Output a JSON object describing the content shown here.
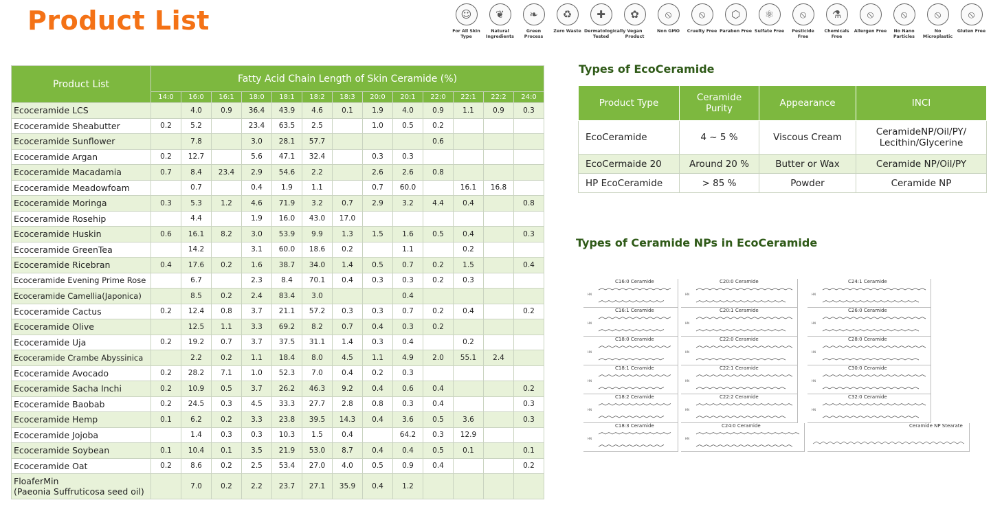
{
  "title": "Product List",
  "icons": [
    {
      "label": "For All Skin Type",
      "icon": "face-icon",
      "glyph": "☺"
    },
    {
      "label": "Natural Ingredients",
      "icon": "leaves-icon",
      "glyph": "❦"
    },
    {
      "label": "Green Process",
      "icon": "leaf-icon",
      "glyph": "❧"
    },
    {
      "label": "Zero Waste",
      "icon": "recycle-icon",
      "glyph": "♻"
    },
    {
      "label": "Dermatologically Tested",
      "icon": "droplet-icon",
      "glyph": "✚"
    },
    {
      "label": "Vegan Product",
      "icon": "vegan-leaf-icon",
      "glyph": "✿"
    },
    {
      "label": "Non GMO",
      "icon": "dna-icon",
      "glyph": "⦸"
    },
    {
      "label": "Cruelty Free",
      "icon": "rabbit-icon",
      "glyph": "⦸"
    },
    {
      "label": "Paraben Free",
      "icon": "molecule-icon",
      "glyph": "⬡"
    },
    {
      "label": "Sulfate Free",
      "icon": "atom-icon",
      "glyph": "⚛"
    },
    {
      "label": "Pesticide Free",
      "icon": "spray-bottle-icon",
      "glyph": "⦸"
    },
    {
      "label": "Chemicals Free",
      "icon": "flask-icon",
      "glyph": "⚗"
    },
    {
      "label": "Allergen Free",
      "icon": "hand-icon",
      "glyph": "⦸"
    },
    {
      "label": "No Nano Particles",
      "icon": "nano-particles-icon",
      "glyph": "⦸"
    },
    {
      "label": "No Microplastic",
      "icon": "microplastic-icon",
      "glyph": "⦸"
    },
    {
      "label": "Gluten Free",
      "icon": "wheat-icon",
      "glyph": "⦸"
    }
  ],
  "product_table": {
    "col_header": "Product List",
    "group_header": "Fatty Acid Chain Length of Skin Ceramide (%)",
    "chain_lengths": [
      "14:0",
      "16:0",
      "16:1",
      "18:0",
      "18:1",
      "18:2",
      "18:3",
      "20:0",
      "20:1",
      "22:0",
      "22:1",
      "22:2",
      "24:0"
    ],
    "rows": [
      {
        "name": "Ecoceramide LCS",
        "values": [
          "",
          "4.0",
          "0.9",
          "36.4",
          "43.9",
          "4.6",
          "0.1",
          "1.9",
          "4.0",
          "0.9",
          "1.1",
          "0.9",
          "0.3"
        ]
      },
      {
        "name": "Ecoceramide Sheabutter",
        "values": [
          "0.2",
          "5.2",
          "",
          "23.4",
          "63.5",
          "2.5",
          "",
          "1.0",
          "0.5",
          "0.2",
          "",
          "",
          ""
        ]
      },
      {
        "name": "Ecoceramide Sunflower",
        "values": [
          "",
          "7.8",
          "",
          "3.0",
          "28.1",
          "57.7",
          "",
          "",
          "",
          "0.6",
          "",
          "",
          ""
        ]
      },
      {
        "name": "Ecoceramide Argan",
        "values": [
          "0.2",
          "12.7",
          "",
          "5.6",
          "47.1",
          "32.4",
          "",
          "0.3",
          "0.3",
          "",
          "",
          "",
          ""
        ]
      },
      {
        "name": "Ecoceramide Macadamia",
        "values": [
          "0.7",
          "8.4",
          "23.4",
          "2.9",
          "54.6",
          "2.2",
          "",
          "2.6",
          "2.6",
          "0.8",
          "",
          "",
          ""
        ]
      },
      {
        "name": "Ecoceramide Meadowfoam",
        "values": [
          "",
          "0.7",
          "",
          "0.4",
          "1.9",
          "1.1",
          "",
          "0.7",
          "60.0",
          "",
          "16.1",
          "16.8",
          ""
        ]
      },
      {
        "name": "Ecoceramide Moringa",
        "values": [
          "0.3",
          "5.3",
          "1.2",
          "4.6",
          "71.9",
          "3.2",
          "0.7",
          "2.9",
          "3.2",
          "4.4",
          "0.4",
          "",
          "0.8"
        ]
      },
      {
        "name": "Ecoceramide Rosehip",
        "values": [
          "",
          "4.4",
          "",
          "1.9",
          "16.0",
          "43.0",
          "17.0",
          "",
          "",
          "",
          "",
          "",
          ""
        ]
      },
      {
        "name": "Ecoceramide Huskin",
        "values": [
          "0.6",
          "16.1",
          "8.2",
          "3.0",
          "53.9",
          "9.9",
          "1.3",
          "1.5",
          "1.6",
          "0.5",
          "0.4",
          "",
          "0.3"
        ]
      },
      {
        "name": "Ecoceramide GreenTea",
        "values": [
          "",
          "14.2",
          "",
          "3.1",
          "60.0",
          "18.6",
          "0.2",
          "",
          "1.1",
          "",
          "0.2",
          "",
          ""
        ]
      },
      {
        "name": "Ecoceramide Ricebran",
        "values": [
          "0.4",
          "17.6",
          "0.2",
          "1.6",
          "38.7",
          "34.0",
          "1.4",
          "0.5",
          "0.7",
          "0.2",
          "1.5",
          "",
          "0.4"
        ]
      },
      {
        "name": "Ecoceramide Evening Prime Rose",
        "values": [
          "",
          "6.7",
          "",
          "2.3",
          "8.4",
          "70.1",
          "0.4",
          "0.3",
          "0.3",
          "0.2",
          "0.3",
          "",
          ""
        ]
      },
      {
        "name": "Ecoceramide Camellia(Japonica)",
        "values": [
          "",
          "8.5",
          "0.2",
          "2.4",
          "83.4",
          "3.0",
          "",
          "",
          "0.4",
          "",
          "",
          "",
          ""
        ]
      },
      {
        "name": "Ecoceramide Cactus",
        "values": [
          "0.2",
          "12.4",
          "0.8",
          "3.7",
          "21.1",
          "57.2",
          "0.3",
          "0.3",
          "0.7",
          "0.2",
          "0.4",
          "",
          "0.2"
        ]
      },
      {
        "name": "Ecoceramide Olive",
        "values": [
          "",
          "12.5",
          "1.1",
          "3.3",
          "69.2",
          "8.2",
          "0.7",
          "0.4",
          "0.3",
          "0.2",
          "",
          "",
          ""
        ]
      },
      {
        "name": "Ecoceramide Uja",
        "values": [
          "0.2",
          "19.2",
          "0.7",
          "3.7",
          "37.5",
          "31.1",
          "1.4",
          "0.3",
          "0.4",
          "",
          "0.2",
          "",
          ""
        ]
      },
      {
        "name": "Ecoceramide Crambe Abyssinica",
        "values": [
          "",
          "2.2",
          "0.2",
          "1.1",
          "18.4",
          "8.0",
          "4.5",
          "1.1",
          "4.9",
          "2.0",
          "55.1",
          "2.4",
          ""
        ]
      },
      {
        "name": "Ecoceramide Avocado",
        "values": [
          "0.2",
          "28.2",
          "7.1",
          "1.0",
          "52.3",
          "7.0",
          "0.4",
          "0.2",
          "0.3",
          "",
          "",
          "",
          ""
        ]
      },
      {
        "name": "Ecoceramide Sacha Inchi",
        "values": [
          "0.2",
          "10.9",
          "0.5",
          "3.7",
          "26.2",
          "46.3",
          "9.2",
          "0.4",
          "0.6",
          "0.4",
          "",
          "",
          "0.2"
        ]
      },
      {
        "name": "Ecoceramide Baobab",
        "values": [
          "0.2",
          "24.5",
          "0.3",
          "4.5",
          "33.3",
          "27.7",
          "2.8",
          "0.8",
          "0.3",
          "0.4",
          "",
          "",
          "0.3"
        ]
      },
      {
        "name": "Ecoceramide Hemp",
        "values": [
          "0.1",
          "6.2",
          "0.2",
          "3.3",
          "23.8",
          "39.5",
          "14.3",
          "0.4",
          "3.6",
          "0.5",
          "3.6",
          "",
          "0.3"
        ]
      },
      {
        "name": "Ecoceramide Jojoba",
        "values": [
          "",
          "1.4",
          "0.3",
          "0.3",
          "10.3",
          "1.5",
          "0.4",
          "",
          "64.2",
          "0.3",
          "12.9",
          "",
          ""
        ]
      },
      {
        "name": "Ecoceramide Soybean",
        "values": [
          "0.1",
          "10.4",
          "0.1",
          "3.5",
          "21.9",
          "53.0",
          "8.7",
          "0.4",
          "0.4",
          "0.5",
          "0.1",
          "",
          "0.1"
        ]
      },
      {
        "name": "Ecoceramide Oat",
        "values": [
          "0.2",
          "8.6",
          "0.2",
          "2.5",
          "53.4",
          "27.0",
          "4.0",
          "0.5",
          "0.9",
          "0.4",
          "",
          "",
          "0.2"
        ]
      },
      {
        "name": "FloaferMin",
        "name2": "(Paeonia Suffruticosa seed oil)",
        "values": [
          "",
          "7.0",
          "0.2",
          "2.2",
          "23.7",
          "27.1",
          "35.9",
          "0.4",
          "1.2",
          "",
          "",
          "",
          ""
        ]
      }
    ]
  },
  "types_section": {
    "title": "Types of EcoCeramide",
    "headers": [
      "Product Type",
      "Ceramide Purity",
      "Appearance",
      "INCI"
    ],
    "rows": [
      {
        "type": "EcoCeramide",
        "purity": "4 ~ 5 %",
        "appearance": "Viscous Cream",
        "inci": "CeramideNP/Oil/PY/ Lecithin/Glycerine"
      },
      {
        "type": "EcoCermaide 20",
        "purity": "Around 20 %",
        "appearance": "Butter or Wax",
        "inci": "Ceramide NP/Oil/PY"
      },
      {
        "type": "HP EcoCeramide",
        "purity": "> 85 %",
        "appearance": "Powder",
        "inci": "Ceramide NP"
      }
    ]
  },
  "np_section": {
    "title": "Types of Ceramide NPs in EcoCeramide",
    "structures": [
      "C16:0 Ceramide",
      "C16:1 Ceramide",
      "C18:0 Ceramide",
      "C18:1 Ceramide",
      "C18:2 Ceramide",
      "C18:3 Ceramide",
      "C20:0 Ceramide",
      "C20:1 Ceramide",
      "C22:0 Ceramide",
      "C22:1 Ceramide",
      "C22:2 Ceramide",
      "C24:0 Ceramide",
      "C24:1 Ceramide",
      "C26:0 Ceramide",
      "C28:0 Ceramide",
      "C30:0 Ceramide",
      "C32:0 Ceramide",
      "Ceramide NP Stearate"
    ]
  },
  "colors": {
    "title": "#f47216",
    "header_green": "#7db83f",
    "row_alt": "#e8f2d9",
    "section_title": "#2f5a18"
  }
}
